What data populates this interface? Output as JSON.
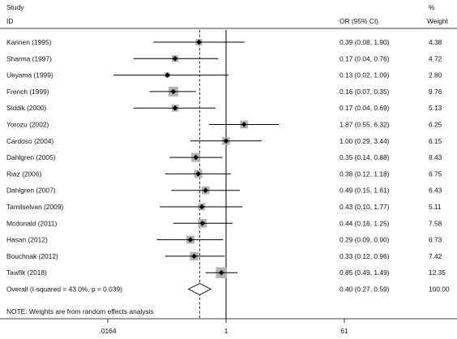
{
  "chart_data": {
    "type": "forest",
    "header": {
      "study_line1": "Study",
      "study_line2": "ID",
      "or_label": "OR (95% CI)",
      "weight_line1": "%",
      "weight_line2": "Weight"
    },
    "scale": "log",
    "xlim": [
      0.0164,
      61
    ],
    "xticks": [
      {
        "value": 0.0164,
        "label": ".0164"
      },
      {
        "value": 1,
        "label": "1"
      },
      {
        "value": 61,
        "label": "61"
      }
    ],
    "null_line": 1,
    "studies": [
      {
        "label": "Karinen (1995)",
        "or": 0.39,
        "lo": 0.08,
        "hi": 1.9,
        "or_text": "0.39 (0.08, 1.90)",
        "weight": 4.38,
        "weight_text": "4.38"
      },
      {
        "label": "Sharma (1997)",
        "or": 0.17,
        "lo": 0.04,
        "hi": 0.76,
        "or_text": "0.17 (0.04, 0.76)",
        "weight": 4.72,
        "weight_text": "4.72"
      },
      {
        "label": "Ueyama (1999)",
        "or": 0.13,
        "lo": 0.02,
        "hi": 1.09,
        "or_text": "0.13 (0.02, 1.09)",
        "weight": 2.8,
        "weight_text": "2.80"
      },
      {
        "label": "French (1999)",
        "or": 0.16,
        "lo": 0.07,
        "hi": 0.35,
        "or_text": "0.16 (0.07, 0.35)",
        "weight": 9.76,
        "weight_text": "9.76"
      },
      {
        "label": "Siddik (2000)",
        "or": 0.17,
        "lo": 0.04,
        "hi": 0.69,
        "or_text": "0.17 (0.04, 0.69)",
        "weight": 5.13,
        "weight_text": "5.13"
      },
      {
        "label": "Yorozu (2002)",
        "or": 1.87,
        "lo": 0.55,
        "hi": 6.32,
        "or_text": "1.87 (0.55, 6.32)",
        "weight": 6.25,
        "weight_text": "6.25"
      },
      {
        "label": "Cardoso (2004)",
        "or": 1.0,
        "lo": 0.29,
        "hi": 3.44,
        "or_text": "1.00 (0.29, 3.44)",
        "weight": 6.15,
        "weight_text": "6.15"
      },
      {
        "label": "Dahlgren (2005)",
        "or": 0.35,
        "lo": 0.14,
        "hi": 0.88,
        "or_text": "0.35 (0.14, 0.88)",
        "weight": 8.43,
        "weight_text": "8.43"
      },
      {
        "label": "Riaz (2006)",
        "or": 0.38,
        "lo": 0.12,
        "hi": 1.18,
        "or_text": "0.38 (0.12, 1.18)",
        "weight": 6.75,
        "weight_text": "6.75"
      },
      {
        "label": "Dahlgren (2007)",
        "or": 0.49,
        "lo": 0.15,
        "hi": 1.61,
        "or_text": "0.49 (0.15, 1.61)",
        "weight": 6.43,
        "weight_text": "6.43"
      },
      {
        "label": "Tamilselvan (2009)",
        "or": 0.43,
        "lo": 0.1,
        "hi": 1.77,
        "or_text": "0.43 (0.10, 1.77)",
        "weight": 5.11,
        "weight_text": "5.11"
      },
      {
        "label": "Mcdonald (2011)",
        "or": 0.44,
        "lo": 0.16,
        "hi": 1.25,
        "or_text": "0.44 (0.16, 1.25)",
        "weight": 7.58,
        "weight_text": "7.58"
      },
      {
        "label": "Hasan (2012)",
        "or": 0.29,
        "lo": 0.09,
        "hi": 0.9,
        "or_text": "0.29 (0.09, 0.90)",
        "weight": 6.73,
        "weight_text": "6.73"
      },
      {
        "label": "Bouchnak (2012)",
        "or": 0.33,
        "lo": 0.12,
        "hi": 0.96,
        "or_text": "0.33 (0.12, 0.96)",
        "weight": 7.42,
        "weight_text": "7.42"
      },
      {
        "label": "Tawfik (2018)",
        "or": 0.85,
        "lo": 0.49,
        "hi": 1.49,
        "or_text": "0.85 (0.49, 1.49)",
        "weight": 12.35,
        "weight_text": "12.35"
      }
    ],
    "overall": {
      "label": "Overall  (I-squared = 43.0%, p = 0.039)",
      "or": 0.4,
      "lo": 0.27,
      "hi": 0.59,
      "or_text": "0.40 (0.27, 0.59)",
      "weight_text": "100.00"
    },
    "note": "NOTE: Weights are from random effects analysis",
    "colors": {
      "box": "#b3b3b3",
      "line": "#000000"
    }
  }
}
